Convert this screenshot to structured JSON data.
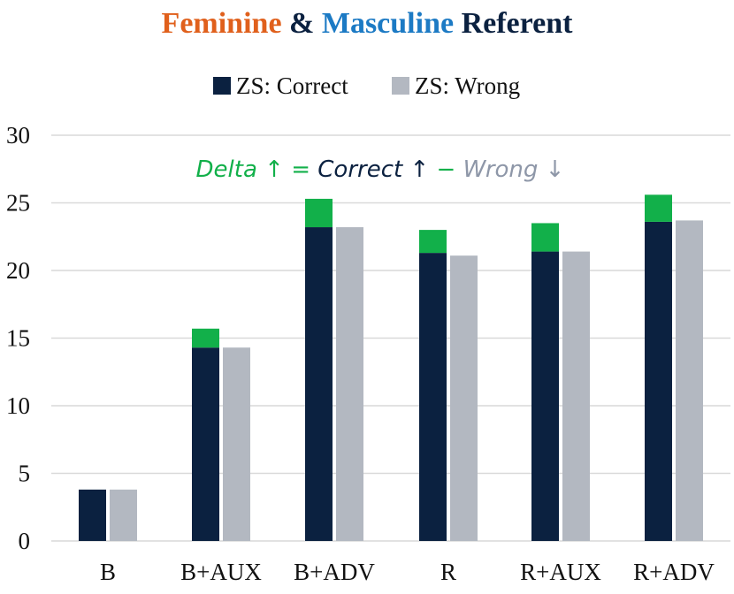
{
  "chart_data": {
    "type": "bar",
    "title": {
      "part1": "Feminine",
      "part2": " & ",
      "part3": "Masculine",
      "part4": " Referent"
    },
    "xlabel": "",
    "ylabel": "",
    "ylim": [
      0,
      30
    ],
    "yticks": [
      0,
      5,
      10,
      15,
      20,
      25,
      30
    ],
    "grid": true,
    "legend_position": "top-center",
    "categories": [
      "B",
      "B+AUX",
      "B+ADV",
      "R",
      "R+AUX",
      "R+ADV"
    ],
    "series": [
      {
        "name": "ZS: Correct",
        "color": "#0b2140",
        "values": [
          3.8,
          14.3,
          23.2,
          21.3,
          21.4,
          23.6
        ]
      },
      {
        "name": "ZS: Wrong",
        "color": "#b3b8c1",
        "values": [
          3.8,
          14.3,
          23.2,
          21.1,
          21.4,
          23.7
        ]
      }
    ],
    "delta": {
      "color": "#12b04a",
      "values": [
        0,
        1.4,
        2.1,
        1.7,
        2.1,
        2.0
      ]
    },
    "annotation": {
      "delta": "Delta ↑ ",
      "eq": "= ",
      "correct": "Correct ↑ ",
      "minus": "− ",
      "wrong": "Wrong ↓"
    },
    "colors": {
      "feminine": "#e0601c",
      "masculine": "#1c7ac4",
      "referent": "#0b2140",
      "correct": "#0b2140",
      "wrong": "#b3b8c1",
      "delta": "#12b04a",
      "wrong_text": "#8e97a8",
      "grid": "#d9d9d9"
    }
  }
}
